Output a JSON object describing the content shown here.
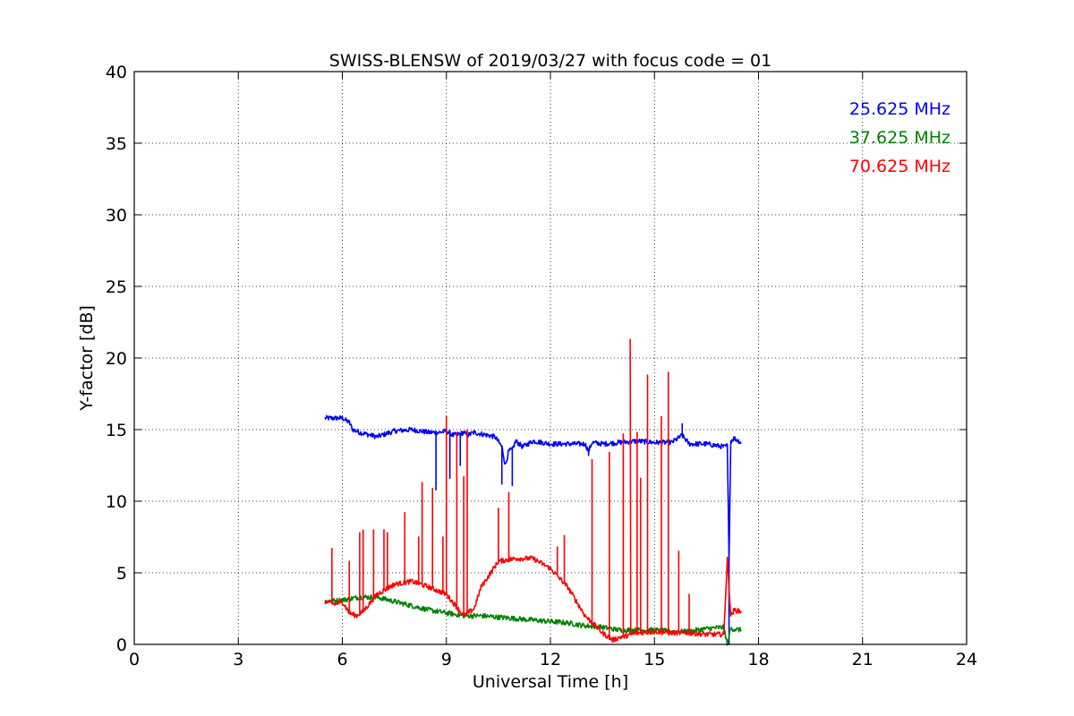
{
  "chart_data": {
    "type": "line",
    "title": "SWISS-BLENSW of 2019/03/27 with focus code = 01",
    "xlabel": "Universal Time [h]",
    "ylabel": "Y-factor [dB]",
    "xlim": [
      0,
      24
    ],
    "ylim": [
      0,
      40
    ],
    "xticks": [
      0,
      3,
      6,
      9,
      12,
      15,
      18,
      21,
      24
    ],
    "yticks": [
      0,
      5,
      10,
      15,
      20,
      25,
      30,
      35,
      40
    ],
    "grid": true,
    "legend_position": "top-right",
    "series": [
      {
        "name": "25.625 MHz",
        "color": "#0000ff",
        "x": [
          5.5,
          6.0,
          6.2,
          6.3,
          6.5,
          7.0,
          7.5,
          8.0,
          8.5,
          8.7,
          8.8,
          9.0,
          9.2,
          9.4,
          9.5,
          9.6,
          9.8,
          10.0,
          10.2,
          10.4,
          10.6,
          10.7,
          10.8,
          10.9,
          11.0,
          11.2,
          11.5,
          12.0,
          12.5,
          13.0,
          13.1,
          13.2,
          13.5,
          14.0,
          14.5,
          15.0,
          15.5,
          15.8,
          16.0,
          16.5,
          17.0,
          17.05,
          17.1,
          17.15,
          17.2,
          17.3,
          17.5
        ],
        "y": [
          15.8,
          15.8,
          15.5,
          15.0,
          14.8,
          14.5,
          14.9,
          15.0,
          14.8,
          14.8,
          14.8,
          14.9,
          14.6,
          14.7,
          14.8,
          14.6,
          14.8,
          14.7,
          14.6,
          14.5,
          13.8,
          12.5,
          13.5,
          13.6,
          14.2,
          13.8,
          14.2,
          14.0,
          14.0,
          14.0,
          13.5,
          14.1,
          14.0,
          14.1,
          14.2,
          14.1,
          14.1,
          14.6,
          14.0,
          14.0,
          13.8,
          13.8,
          13.9,
          6.0,
          14.2,
          14.4,
          14.1
        ],
        "spikes": [
          [
            8.7,
            10.8
          ],
          [
            9.1,
            11.6
          ],
          [
            9.4,
            12.5
          ],
          [
            10.6,
            11.2
          ],
          [
            10.9,
            11.1
          ],
          [
            13.1,
            13.2
          ],
          [
            15.8,
            15.4
          ],
          [
            17.15,
            0.0
          ]
        ]
      },
      {
        "name": "37.625 MHz",
        "color": "#008000",
        "x": [
          5.5,
          6.0,
          6.5,
          7.0,
          7.5,
          8.0,
          8.5,
          9.0,
          9.5,
          10.0,
          10.5,
          11.0,
          11.5,
          12.0,
          12.5,
          13.0,
          13.5,
          14.0,
          14.5,
          15.0,
          15.5,
          16.0,
          16.5,
          17.0,
          17.1,
          17.2,
          17.5
        ],
        "y": [
          3.0,
          3.1,
          3.3,
          3.3,
          3.0,
          2.7,
          2.4,
          2.2,
          2.0,
          2.0,
          1.9,
          1.8,
          1.7,
          1.6,
          1.5,
          1.3,
          1.2,
          1.0,
          1.0,
          1.0,
          0.9,
          0.9,
          1.1,
          1.2,
          0.0,
          1.1,
          1.0
        ],
        "spikes": []
      },
      {
        "name": "70.625 MHz",
        "color": "#ff0000",
        "x": [
          5.5,
          5.8,
          6.0,
          6.2,
          6.4,
          6.6,
          7.0,
          7.5,
          8.0,
          8.5,
          9.0,
          9.5,
          9.8,
          10.0,
          10.5,
          11.0,
          11.5,
          12.0,
          12.5,
          13.0,
          13.5,
          13.8,
          14.0,
          14.2,
          14.5,
          15.0,
          15.5,
          16.0,
          16.5,
          17.0,
          17.1,
          17.2,
          17.3,
          17.5
        ],
        "y": [
          3.0,
          2.8,
          3.0,
          2.2,
          2.0,
          2.3,
          3.5,
          4.2,
          4.4,
          4.0,
          3.5,
          2.0,
          2.5,
          4.0,
          5.8,
          6.0,
          6.0,
          5.3,
          4.0,
          2.0,
          0.8,
          0.3,
          0.5,
          0.6,
          0.8,
          0.9,
          0.8,
          0.8,
          0.7,
          0.7,
          6.0,
          2.0,
          2.4,
          2.3
        ],
        "spikes": [
          [
            5.7,
            6.7
          ],
          [
            6.2,
            5.8
          ],
          [
            6.5,
            7.8
          ],
          [
            6.6,
            8.0
          ],
          [
            6.9,
            8.0
          ],
          [
            7.2,
            8.0
          ],
          [
            7.3,
            7.8
          ],
          [
            7.8,
            9.2
          ],
          [
            8.2,
            7.5
          ],
          [
            8.3,
            11.3
          ],
          [
            8.6,
            10.9
          ],
          [
            8.9,
            7.5
          ],
          [
            9.0,
            15.9
          ],
          [
            9.3,
            14.8
          ],
          [
            9.5,
            11.7
          ],
          [
            9.6,
            15.0
          ],
          [
            10.5,
            9.5
          ],
          [
            10.8,
            10.6
          ],
          [
            12.2,
            6.8
          ],
          [
            12.4,
            7.6
          ],
          [
            13.2,
            12.9
          ],
          [
            13.7,
            13.4
          ],
          [
            14.1,
            14.7
          ],
          [
            14.3,
            21.3
          ],
          [
            14.5,
            14.8
          ],
          [
            14.6,
            11.6
          ],
          [
            14.8,
            18.8
          ],
          [
            15.2,
            15.9
          ],
          [
            15.4,
            19.0
          ],
          [
            15.7,
            6.5
          ],
          [
            16.0,
            3.5
          ]
        ]
      }
    ]
  }
}
